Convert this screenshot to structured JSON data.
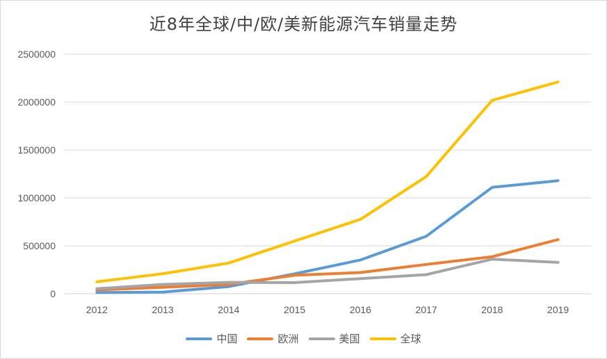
{
  "chart_data": {
    "type": "line",
    "title": "近8年全球/中/欧/美新能源汽车销量走势",
    "xlabel": "",
    "ylabel": "",
    "categories": [
      "2012",
      "2013",
      "2014",
      "2015",
      "2016",
      "2017",
      "2018",
      "2019"
    ],
    "ylim": [
      0,
      2500000
    ],
    "yticks": [
      0,
      500000,
      1000000,
      1500000,
      2000000,
      2500000
    ],
    "ytick_labels": [
      "0",
      "500000",
      "1000000",
      "1500000",
      "2000000",
      "2500000"
    ],
    "grid": true,
    "legend_position": "bottom",
    "series": [
      {
        "name": "中国",
        "color": "#5b9bd5",
        "values": [
          13000,
          17600,
          74800,
          207000,
          352000,
          600000,
          1110000,
          1180000
        ]
      },
      {
        "name": "欧洲",
        "color": "#ed7d31",
        "values": [
          40000,
          67000,
          97000,
          193000,
          221000,
          306000,
          386000,
          565000
        ]
      },
      {
        "name": "美国",
        "color": "#a5a5a5",
        "values": [
          53000,
          97000,
          119000,
          116000,
          158000,
          199000,
          361000,
          327000
        ]
      },
      {
        "name": "全球",
        "color": "#ffc000",
        "values": [
          125000,
          209000,
          320000,
          550000,
          776000,
          1223000,
          2018000,
          2210000
        ]
      }
    ]
  }
}
